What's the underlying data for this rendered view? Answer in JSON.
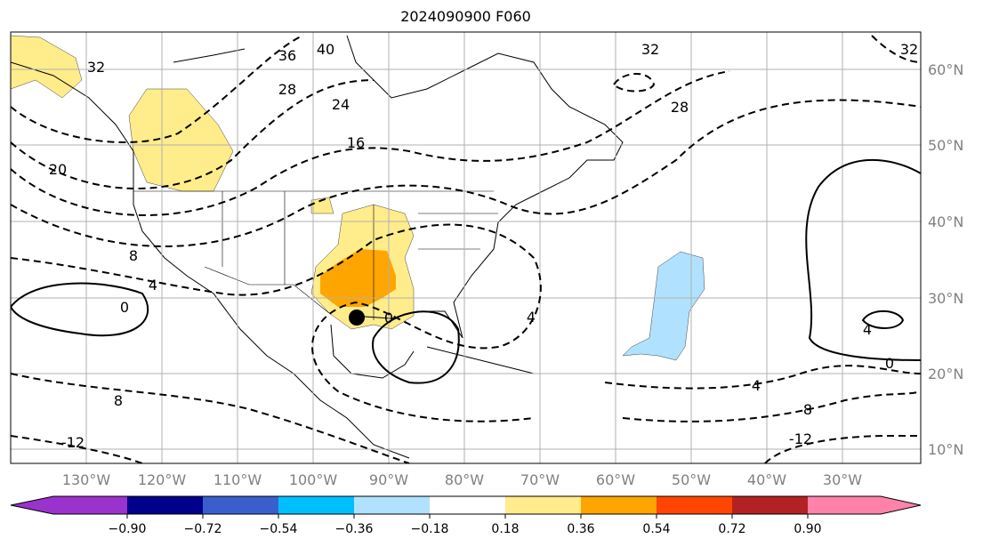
{
  "title": "2024090900 F060",
  "lon_labels": [
    "130°W",
    "120°W",
    "110°W",
    "100°W",
    "90°W",
    "80°W",
    "70°W",
    "60°W",
    "50°W",
    "40°W",
    "30°W"
  ],
  "lat_labels": [
    "60°N",
    "50°N",
    "40°N",
    "30°N",
    "20°N",
    "10°N"
  ],
  "contour_labels": [
    "36",
    "40",
    "32",
    "28",
    "24",
    "16",
    "20",
    "8",
    "4",
    "0",
    "0",
    "4",
    "32",
    "28",
    "32",
    "0",
    "4",
    "4",
    "8",
    "-12",
    "8",
    "-12"
  ],
  "colorbar": {
    "ticks": [
      "−0.90",
      "−0.72",
      "−0.54",
      "−0.36",
      "−0.18",
      "0.18",
      "0.36",
      "0.54",
      "0.72",
      "0.90"
    ],
    "colors": [
      "#9A32CD",
      "#00008B",
      "#3A5FCD",
      "#00BFFF",
      "#B0E2FF",
      "#FFFFFF",
      "#FFEC8B",
      "#FFA500",
      "#FF4500",
      "#B22222",
      "#FF82AB"
    ]
  }
}
